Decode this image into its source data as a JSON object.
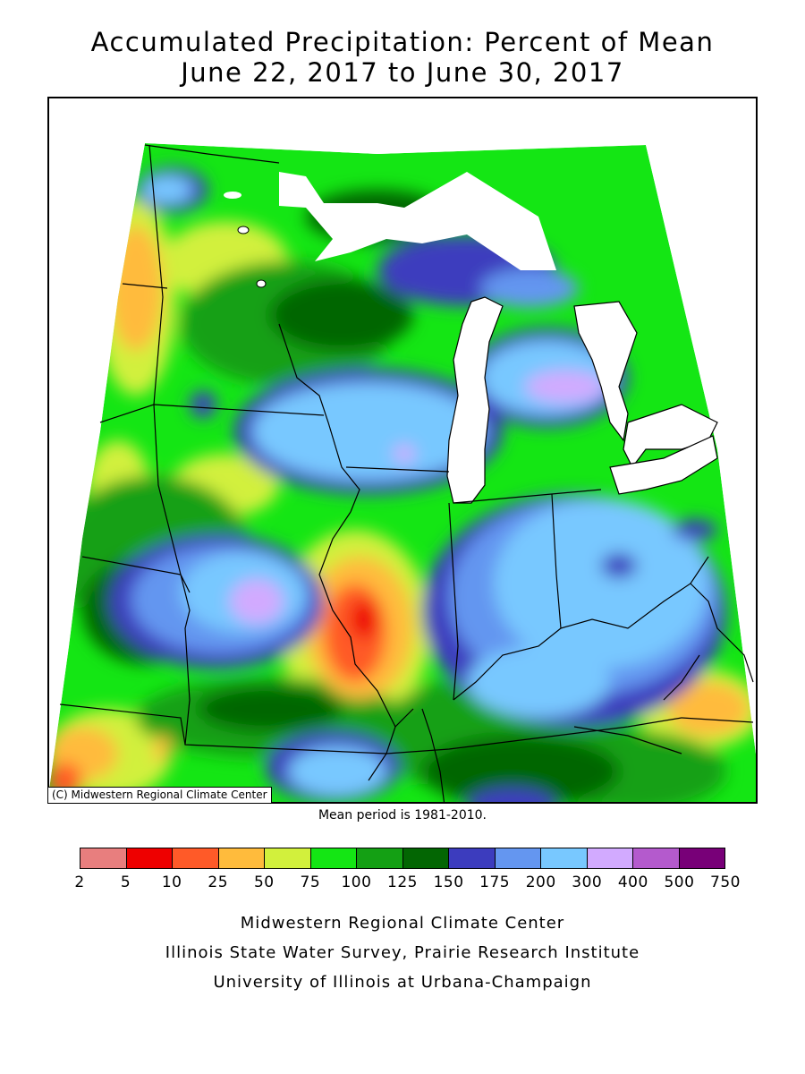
{
  "title": {
    "line1": "Accumulated Precipitation: Percent of Mean",
    "line2": "June 22, 2017 to June 30, 2017"
  },
  "map": {
    "copyright": "(C) Midwestern Regional Climate Center",
    "note": "Mean period is 1981-2010."
  },
  "legend": {
    "breaks": [
      "2",
      "5",
      "10",
      "25",
      "50",
      "75",
      "100",
      "125",
      "150",
      "175",
      "200",
      "300",
      "400",
      "500",
      "750"
    ],
    "colors": [
      "#e87e7e",
      "#ee0000",
      "#ff5a28",
      "#ffbb3c",
      "#d2f03c",
      "#14e614",
      "#14a014",
      "#036603",
      "#3c3cbe",
      "#6496f0",
      "#78c8ff",
      "#d2aaff",
      "#b45acd",
      "#780078"
    ]
  },
  "credits": {
    "line1": "Midwestern Regional Climate Center",
    "line2": "Illinois State Water Survey, Prairie Research Institute",
    "line3": "University of Illinois at Urbana-Champaign"
  }
}
